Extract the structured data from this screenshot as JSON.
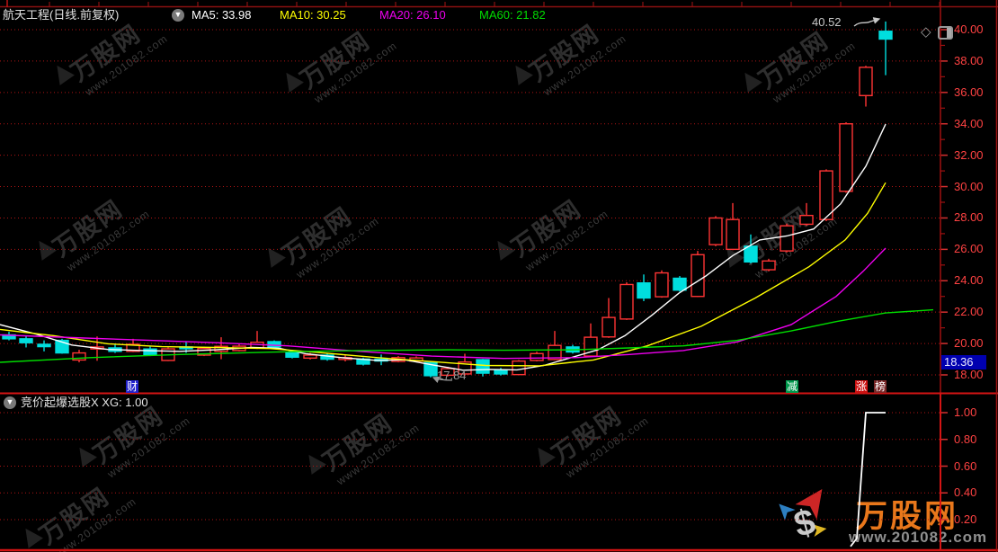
{
  "header": {
    "title": "航天工程(日线.前复权)",
    "ma": [
      {
        "text": "MA5: 33.98",
        "color": "#ffffff"
      },
      {
        "text": "MA10: 30.25",
        "color": "#ffff00"
      },
      {
        "text": "MA20: 26.10",
        "color": "#ee00ee"
      },
      {
        "text": "MA60: 21.82",
        "color": "#00dd00"
      }
    ]
  },
  "corner_icons": {
    "diamond": "◇"
  },
  "price_axis": {
    "labels": [
      "40.00",
      "38.00",
      "36.00",
      "34.00",
      "32.00",
      "30.00",
      "28.00",
      "26.00",
      "24.00",
      "22.00",
      "20.00",
      "18.00"
    ],
    "tick_values": [
      40,
      38,
      36,
      34,
      32,
      30,
      28,
      26,
      24,
      22,
      20,
      18
    ],
    "current": "18.36",
    "color": "#ff4242"
  },
  "sub_axis": {
    "labels": [
      "1.00",
      "0.80",
      "0.60",
      "0.40",
      "0.20"
    ],
    "tick_values": [
      1.0,
      0.8,
      0.6,
      0.4,
      0.2
    ]
  },
  "annotations": {
    "high": "40.52",
    "low": "17.84"
  },
  "badges": [
    {
      "text": "财",
      "bg": "#2222cc"
    },
    {
      "text": "减",
      "bg": "#00994c"
    },
    {
      "text": "涨",
      "bg": "#cc1111"
    },
    {
      "text": "榜",
      "bg": "#7a2828"
    }
  ],
  "sub_header": {
    "title": "竞价起爆选股X XG: 1.00"
  },
  "watermark": {
    "brand": "万股网",
    "url": "www.201082.com"
  },
  "logo": {
    "brand": "万股网",
    "url": "www.201082.com"
  },
  "colors": {
    "up": "#ff3434",
    "down": "#00dede",
    "grid": "#b01414",
    "axis_main": "#a01010",
    "axis_sub": "#d41414",
    "xg_line": "#ffffff"
  },
  "chart_data": [
    {
      "type": "candlestick",
      "title": "航天工程(日线.前复权)",
      "ylim": [
        17.5,
        41.0
      ],
      "y_ticks": [
        18,
        20,
        22,
        24,
        26,
        28,
        30,
        32,
        34,
        36,
        38,
        40
      ],
      "grid": "dotted-red-horizontal",
      "annotations": [
        {
          "text": "40.52",
          "meaning": "high of last candle"
        },
        {
          "text": "17.84",
          "meaning": "lowest low of visible range"
        }
      ],
      "candles_format": [
        "x",
        "open",
        "high",
        "low",
        "close"
      ],
      "candles": [
        [
          10,
          20.55,
          20.75,
          20.2,
          20.3
        ],
        [
          29,
          20.3,
          20.5,
          19.75,
          20.05
        ],
        [
          49,
          19.95,
          20.2,
          19.5,
          19.8
        ],
        [
          69,
          20.2,
          20.3,
          19.35,
          19.4
        ],
        [
          88,
          18.95,
          19.6,
          18.8,
          19.4
        ],
        [
          108,
          19.65,
          20.45,
          18.9,
          19.78
        ],
        [
          128,
          19.72,
          19.95,
          19.4,
          19.5
        ],
        [
          148,
          19.5,
          20.3,
          19.45,
          19.95
        ],
        [
          167,
          19.65,
          19.8,
          19.2,
          19.3
        ],
        [
          187,
          18.92,
          19.75,
          18.88,
          19.66
        ],
        [
          207,
          19.78,
          20.15,
          19.4,
          19.68
        ],
        [
          227,
          19.26,
          19.8,
          19.2,
          19.68
        ],
        [
          246,
          19.5,
          20.4,
          19.0,
          19.82
        ],
        [
          266,
          19.55,
          19.95,
          19.5,
          19.83
        ],
        [
          286,
          19.7,
          20.8,
          19.65,
          20.08
        ],
        [
          305,
          20.12,
          20.2,
          19.7,
          19.78
        ],
        [
          325,
          19.45,
          19.6,
          19.05,
          19.13
        ],
        [
          345,
          19.07,
          19.4,
          18.98,
          19.26
        ],
        [
          364,
          19.26,
          19.35,
          18.9,
          19.0
        ],
        [
          384,
          19.02,
          19.3,
          18.86,
          19.1
        ],
        [
          404,
          19.01,
          19.1,
          18.6,
          18.69
        ],
        [
          424,
          19.0,
          19.3,
          18.62,
          18.95
        ],
        [
          443,
          18.86,
          19.2,
          18.8,
          19.1
        ],
        [
          463,
          18.88,
          19.18,
          18.8,
          19.08
        ],
        [
          479,
          18.78,
          18.85,
          17.84,
          17.95
        ],
        [
          498,
          17.98,
          18.52,
          17.9,
          18.4
        ],
        [
          517,
          18.06,
          19.35,
          17.95,
          18.82
        ],
        [
          537,
          18.97,
          19.02,
          17.9,
          18.11
        ],
        [
          557,
          18.32,
          18.45,
          17.96,
          18.06
        ],
        [
          577,
          18.02,
          18.95,
          17.98,
          18.88
        ],
        [
          597,
          18.92,
          19.48,
          18.86,
          19.36
        ],
        [
          617,
          18.98,
          20.8,
          18.94,
          19.88
        ],
        [
          637,
          19.78,
          19.92,
          19.36,
          19.46
        ],
        [
          657,
          19.2,
          21.28,
          19.16,
          20.4
        ],
        [
          677,
          20.42,
          22.9,
          20.36,
          21.66
        ],
        [
          697,
          21.56,
          23.9,
          21.5,
          23.76
        ],
        [
          716,
          23.86,
          24.4,
          22.7,
          22.9
        ],
        [
          736,
          22.98,
          24.66,
          22.92,
          24.5
        ],
        [
          756,
          24.16,
          24.3,
          23.3,
          23.4
        ],
        [
          776,
          23.0,
          25.9,
          22.96,
          25.66
        ],
        [
          796,
          26.3,
          28.12,
          26.2,
          28.0
        ],
        [
          815,
          26.0,
          28.95,
          25.95,
          27.9
        ],
        [
          835,
          26.2,
          26.95,
          25.1,
          25.2
        ],
        [
          855,
          24.7,
          25.4,
          24.6,
          25.26
        ],
        [
          875,
          25.9,
          27.64,
          25.8,
          27.5
        ],
        [
          897,
          27.6,
          28.95,
          27.5,
          28.16
        ],
        [
          919,
          27.9,
          31.1,
          27.8,
          31.0
        ],
        [
          941,
          29.7,
          34.1,
          29.6,
          34.0
        ],
        [
          963,
          35.8,
          37.7,
          35.1,
          37.6
        ],
        [
          985,
          39.9,
          40.52,
          37.1,
          39.4
        ]
      ],
      "ma_series": [
        {
          "name": "MA5",
          "value": 33.98,
          "color": "#ffffff",
          "points": [
            [
              0,
              21.2
            ],
            [
              40,
              20.6
            ],
            [
              80,
              19.9
            ],
            [
              120,
              19.62
            ],
            [
              160,
              19.55
            ],
            [
              200,
              19.5
            ],
            [
              240,
              19.6
            ],
            [
              280,
              19.75
            ],
            [
              310,
              19.7
            ],
            [
              340,
              19.35
            ],
            [
              380,
              19.1
            ],
            [
              420,
              18.92
            ],
            [
              450,
              18.96
            ],
            [
              480,
              18.65
            ],
            [
              515,
              18.3
            ],
            [
              545,
              18.35
            ],
            [
              575,
              18.32
            ],
            [
              605,
              18.6
            ],
            [
              635,
              19.1
            ],
            [
              665,
              19.6
            ],
            [
              695,
              20.5
            ],
            [
              725,
              21.8
            ],
            [
              755,
              23.2
            ],
            [
              785,
              24.3
            ],
            [
              815,
              25.6
            ],
            [
              845,
              26.6
            ],
            [
              875,
              26.85
            ],
            [
              905,
              27.3
            ],
            [
              935,
              28.9
            ],
            [
              963,
              31.3
            ],
            [
              985,
              33.98
            ]
          ]
        },
        {
          "name": "MA10",
          "value": 30.25,
          "color": "#ffff00",
          "points": [
            [
              0,
              20.9
            ],
            [
              60,
              20.5
            ],
            [
              120,
              19.98
            ],
            [
              180,
              19.8
            ],
            [
              240,
              19.75
            ],
            [
              300,
              19.68
            ],
            [
              360,
              19.4
            ],
            [
              420,
              19.1
            ],
            [
              480,
              18.85
            ],
            [
              540,
              18.6
            ],
            [
              600,
              18.58
            ],
            [
              660,
              18.95
            ],
            [
              720,
              19.85
            ],
            [
              780,
              21.1
            ],
            [
              840,
              22.9
            ],
            [
              900,
              24.9
            ],
            [
              940,
              26.6
            ],
            [
              965,
              28.3
            ],
            [
              985,
              30.25
            ]
          ]
        },
        {
          "name": "MA20",
          "value": 26.1,
          "color": "#ee00ee",
          "points": [
            [
              0,
              20.55
            ],
            [
              80,
              20.38
            ],
            [
              160,
              20.22
            ],
            [
              240,
              20.05
            ],
            [
              320,
              19.85
            ],
            [
              400,
              19.5
            ],
            [
              480,
              19.2
            ],
            [
              560,
              19.05
            ],
            [
              640,
              19.1
            ],
            [
              700,
              19.3
            ],
            [
              760,
              19.55
            ],
            [
              820,
              20.1
            ],
            [
              880,
              21.2
            ],
            [
              930,
              23.0
            ],
            [
              960,
              24.6
            ],
            [
              985,
              26.08
            ]
          ]
        },
        {
          "name": "MA60",
          "value": 21.82,
          "color": "#00dd00",
          "points": [
            [
              0,
              18.8
            ],
            [
              100,
              19.1
            ],
            [
              200,
              19.3
            ],
            [
              300,
              19.45
            ],
            [
              400,
              19.55
            ],
            [
              500,
              19.6
            ],
            [
              560,
              19.57
            ],
            [
              640,
              19.6
            ],
            [
              700,
              19.72
            ],
            [
              760,
              19.85
            ],
            [
              820,
              20.2
            ],
            [
              880,
              20.8
            ],
            [
              930,
              21.4
            ],
            [
              985,
              21.95
            ],
            [
              1038,
              22.15
            ]
          ]
        }
      ]
    },
    {
      "type": "line",
      "title": "竞价起爆选股X XG: 1.00",
      "ylim": [
        0,
        1.1
      ],
      "y_ticks": [
        0.2,
        0.4,
        0.6,
        0.8,
        1.0
      ],
      "series": [
        {
          "name": "XG",
          "color": "#ffffff",
          "points": [
            [
              946,
              0.0
            ],
            [
              953,
              0.06
            ],
            [
              963,
              1.0
            ],
            [
              985,
              1.0
            ]
          ]
        }
      ]
    }
  ]
}
